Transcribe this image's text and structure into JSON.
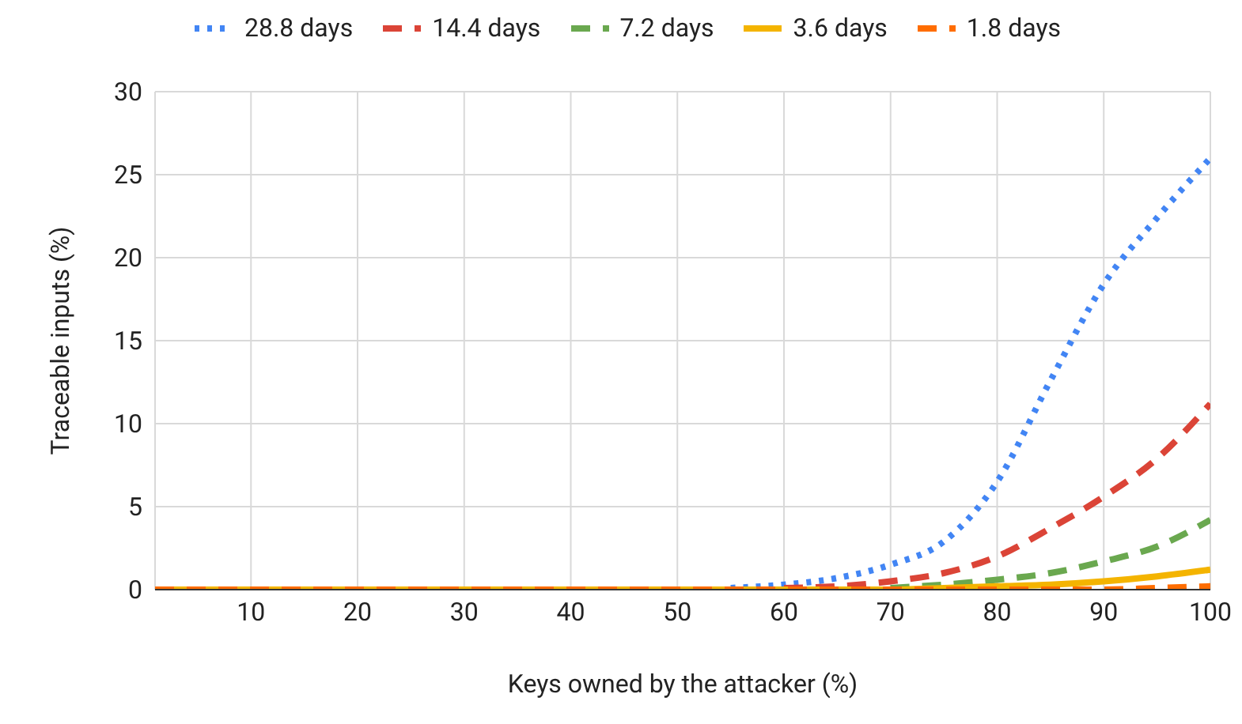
{
  "chart_data": {
    "type": "line",
    "xlabel": "Keys owned by the attacker (%)",
    "ylabel": "Traceable inputs (%)",
    "x": [
      1,
      10,
      20,
      30,
      40,
      50,
      55,
      60,
      65,
      70,
      75,
      80,
      85,
      90,
      95,
      100
    ],
    "xlim": [
      1,
      100
    ],
    "xticks": [
      10,
      20,
      30,
      40,
      50,
      60,
      70,
      80,
      90,
      100
    ],
    "ylim": [
      0,
      30
    ],
    "yticks": [
      0,
      5,
      10,
      15,
      20,
      25,
      30
    ],
    "grid": true,
    "legend": "top",
    "marker": "none",
    "series": [
      {
        "name": "28.8 days",
        "color": "#4285f4",
        "line_style": "dotted",
        "values": [
          null,
          null,
          null,
          null,
          null,
          null,
          0.1,
          0.3,
          0.7,
          1.5,
          2.9,
          6.5,
          12.6,
          18.4,
          22.4,
          26
        ]
      },
      {
        "name": "14.4 days",
        "color": "#db4437",
        "line_style": "dashed",
        "values": [
          null,
          null,
          null,
          null,
          null,
          null,
          null,
          0.1,
          0.2,
          0.5,
          1,
          2,
          3.7,
          5.6,
          7.9,
          11.2
        ]
      },
      {
        "name": "7.2 days",
        "color": "#6aa84f",
        "line_style": "dashed",
        "values": [
          null,
          null,
          null,
          null,
          null,
          null,
          null,
          null,
          null,
          0.1,
          0.3,
          0.6,
          1,
          1.7,
          2.6,
          4.2
        ]
      },
      {
        "name": "3.6 days",
        "color": "#f4b400",
        "line_style": "solid",
        "values": [
          0,
          0,
          0,
          0,
          0,
          0,
          0,
          0,
          0,
          0,
          0.1,
          0.2,
          0.3,
          0.5,
          0.8,
          1.2
        ]
      },
      {
        "name": "1.8 days",
        "color": "#ff6d00",
        "line_style": "dashed",
        "values": [
          0,
          0,
          0,
          0,
          0,
          0,
          0,
          0,
          0,
          0,
          0,
          0,
          0,
          0,
          0.1,
          0.2
        ]
      }
    ]
  }
}
